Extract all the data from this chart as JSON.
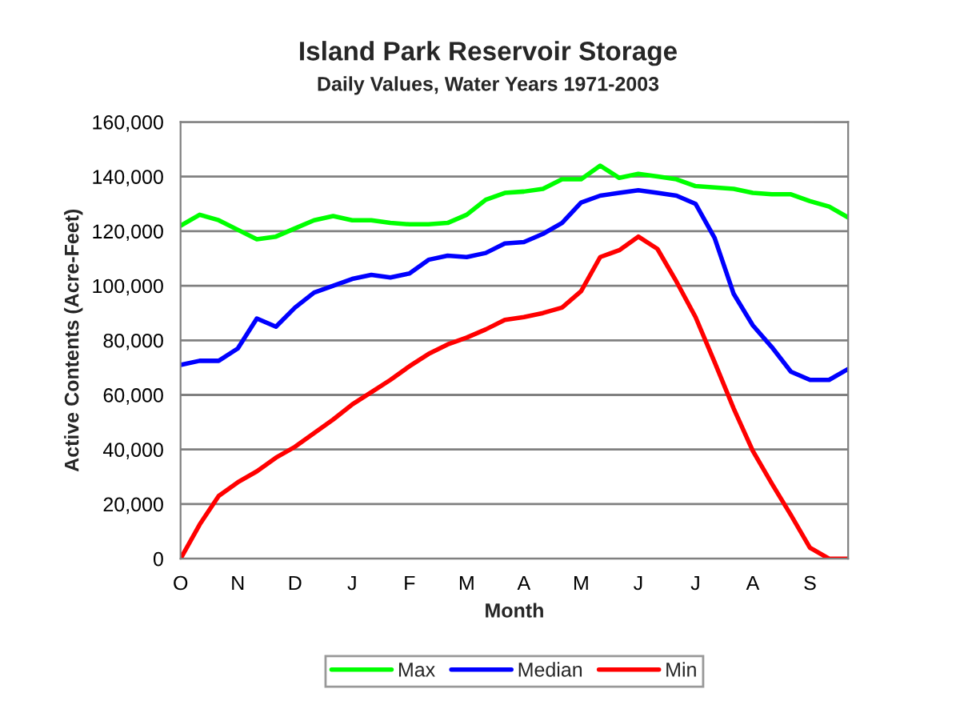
{
  "chart_data": {
    "type": "line",
    "title": "Island Park Reservoir Storage",
    "subtitle": "Daily Values, Water Years 1971-2003",
    "xlabel": "Month",
    "ylabel": "Active Contents (Acre-Feet)",
    "categories": [
      "O",
      null,
      null,
      "N",
      null,
      null,
      "D",
      null,
      null,
      "J",
      null,
      null,
      "F",
      null,
      null,
      "M",
      null,
      null,
      "A",
      null,
      null,
      "M",
      null,
      null,
      "J",
      null,
      null,
      "J",
      null,
      null,
      "A",
      null,
      null,
      "S",
      null,
      null
    ],
    "ylim": [
      0,
      160000
    ],
    "yticks": [
      {
        "value": 0,
        "label": "0"
      },
      {
        "value": 20000,
        "label": "20,000"
      },
      {
        "value": 40000,
        "label": "40,000"
      },
      {
        "value": 60000,
        "label": "60,000"
      },
      {
        "value": 80000,
        "label": "80,000"
      },
      {
        "value": 100000,
        "label": "100,000"
      },
      {
        "value": 120000,
        "label": "120,000"
      },
      {
        "value": 140000,
        "label": "140,000"
      },
      {
        "value": 160000,
        "label": "160,000"
      }
    ],
    "grid": "y",
    "legend": "bottom",
    "marker": "none",
    "line_style": "solid",
    "series": [
      {
        "name": "Max",
        "color": "#00ff00",
        "values": [
          122000,
          126000,
          124000,
          120500,
          117000,
          118000,
          121000,
          124000,
          125500,
          124000,
          124000,
          123000,
          122500,
          122500,
          123000,
          126000,
          131500,
          134000,
          134500,
          135500,
          139000,
          139000,
          144000,
          139500,
          141000,
          140000,
          139000,
          136500,
          136000,
          135500,
          134000,
          133500,
          133500,
          131000,
          129000,
          125000
        ]
      },
      {
        "name": "Median",
        "color": "#0000ff",
        "values": [
          71000,
          72500,
          72500,
          77000,
          88000,
          85000,
          92000,
          97500,
          100000,
          102500,
          104000,
          103000,
          104500,
          109500,
          111000,
          110500,
          112000,
          115500,
          116000,
          119000,
          123000,
          130500,
          133000,
          134000,
          135000,
          134000,
          133000,
          130000,
          117500,
          97000,
          85500,
          77500,
          68500,
          65500,
          65500,
          69500
        ]
      },
      {
        "name": "Min",
        "color": "#ff0000",
        "values": [
          0,
          12500,
          23000,
          28000,
          32000,
          37000,
          41000,
          46000,
          51000,
          56500,
          61000,
          65500,
          70500,
          75000,
          78500,
          81000,
          84000,
          87500,
          88500,
          90000,
          92000,
          98000,
          110500,
          113000,
          118000,
          113500,
          101500,
          88500,
          72000,
          55000,
          39500,
          27500,
          16000,
          4000,
          0,
          0
        ]
      }
    ]
  }
}
